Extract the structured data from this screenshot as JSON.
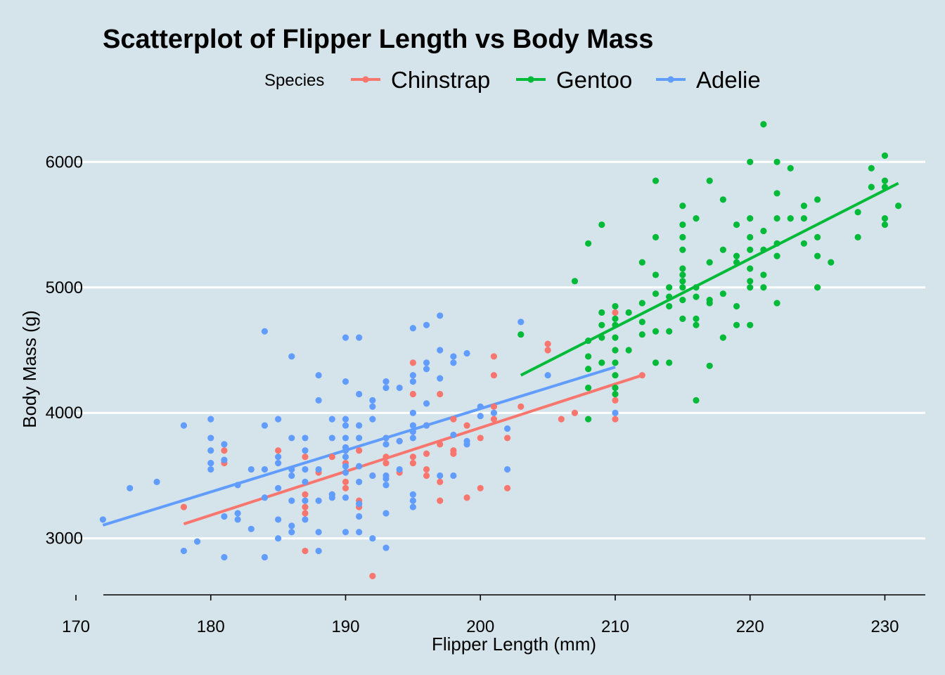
{
  "chart_data": {
    "type": "scatter",
    "title": "Scatterplot of Flipper Length vs Body Mass",
    "xlabel": "Flipper Length (mm)",
    "ylabel": "Body Mass (g)",
    "xlim": [
      170,
      233
    ],
    "ylim": [
      2550,
      6450
    ],
    "x_ticks": [
      170,
      180,
      190,
      200,
      210,
      220,
      230
    ],
    "y_ticks": [
      3000,
      4000,
      5000,
      6000
    ],
    "x_tick_labels": [
      "170",
      "180",
      "190",
      "200",
      "210",
      "220",
      "230"
    ],
    "y_tick_labels": [
      "3000",
      "4000",
      "5000",
      "6000"
    ],
    "grid": "horizontal major only",
    "legend": {
      "title": "Species",
      "placement": "top"
    },
    "series": [
      {
        "name": "Chinstrap",
        "color": "#f8766d",
        "fit": {
          "x": [
            178,
            212
          ],
          "y": [
            3115,
            4300
          ]
        },
        "points": [
          [
            178,
            3250
          ],
          [
            181,
            3700
          ],
          [
            181,
            3600
          ],
          [
            185,
            3700
          ],
          [
            187,
            3650
          ],
          [
            187,
            3350
          ],
          [
            187,
            3250
          ],
          [
            187,
            3200
          ],
          [
            187,
            2900
          ],
          [
            188,
            3525
          ],
          [
            189,
            3650
          ],
          [
            189,
            3350
          ],
          [
            190,
            3600
          ],
          [
            190,
            3450
          ],
          [
            190,
            3400
          ],
          [
            191,
            3300
          ],
          [
            191,
            3250
          ],
          [
            191,
            3700
          ],
          [
            192,
            2700
          ],
          [
            192,
            3500
          ],
          [
            193,
            3800
          ],
          [
            193,
            3650
          ],
          [
            193,
            3600
          ],
          [
            194,
            3775
          ],
          [
            194,
            3525
          ],
          [
            195,
            4400
          ],
          [
            195,
            4150
          ],
          [
            195,
            3650
          ],
          [
            195,
            3600
          ],
          [
            196,
            3900
          ],
          [
            196,
            3500
          ],
          [
            196,
            3550
          ],
          [
            196,
            3675
          ],
          [
            197,
            4150
          ],
          [
            197,
            3750
          ],
          [
            197,
            3450
          ],
          [
            197,
            3300
          ],
          [
            198,
            3950
          ],
          [
            198,
            3700
          ],
          [
            198,
            3675
          ],
          [
            199,
            3900
          ],
          [
            199,
            3325
          ],
          [
            200,
            3800
          ],
          [
            200,
            3400
          ],
          [
            201,
            4050
          ],
          [
            201,
            3950
          ],
          [
            202,
            3800
          ],
          [
            202,
            3400
          ],
          [
            203,
            4050
          ],
          [
            205,
            4550
          ],
          [
            205,
            4500
          ],
          [
            206,
            3950
          ],
          [
            207,
            4000
          ],
          [
            210,
            4800
          ],
          [
            210,
            4100
          ],
          [
            210,
            3950
          ],
          [
            212,
            4300
          ],
          [
            201,
            4450
          ],
          [
            201,
            4300
          ]
        ]
      },
      {
        "name": "Gentoo",
        "color": "#00ba38",
        "fit": {
          "x": [
            203,
            231
          ],
          "y": [
            4300,
            5830
          ]
        },
        "points": [
          [
            203,
            4625
          ],
          [
            207,
            5050
          ],
          [
            208,
            5350
          ],
          [
            208,
            4575
          ],
          [
            208,
            4450
          ],
          [
            208,
            4350
          ],
          [
            208,
            4200
          ],
          [
            208,
            3950
          ],
          [
            209,
            5500
          ],
          [
            209,
            4800
          ],
          [
            209,
            4700
          ],
          [
            209,
            4600
          ],
          [
            209,
            4400
          ],
          [
            210,
            4850
          ],
          [
            210,
            4750
          ],
          [
            210,
            4700
          ],
          [
            210,
            4600
          ],
          [
            210,
            4500
          ],
          [
            210,
            4400
          ],
          [
            210,
            4300
          ],
          [
            210,
            4200
          ],
          [
            210,
            4150
          ],
          [
            211,
            4800
          ],
          [
            211,
            4500
          ],
          [
            212,
            5200
          ],
          [
            212,
            4875
          ],
          [
            212,
            4725
          ],
          [
            212,
            4625
          ],
          [
            213,
            5850
          ],
          [
            213,
            5400
          ],
          [
            213,
            5100
          ],
          [
            213,
            4950
          ],
          [
            213,
            4650
          ],
          [
            213,
            4400
          ],
          [
            214,
            5000
          ],
          [
            214,
            4925
          ],
          [
            214,
            4850
          ],
          [
            214,
            4650
          ],
          [
            214,
            4400
          ],
          [
            215,
            5650
          ],
          [
            215,
            5500
          ],
          [
            215,
            5400
          ],
          [
            215,
            5300
          ],
          [
            215,
            5150
          ],
          [
            215,
            5100
          ],
          [
            215,
            5050
          ],
          [
            215,
            5000
          ],
          [
            215,
            4900
          ],
          [
            215,
            4750
          ],
          [
            216,
            5550
          ],
          [
            216,
            5000
          ],
          [
            216,
            4925
          ],
          [
            216,
            4750
          ],
          [
            216,
            4700
          ],
          [
            216,
            4100
          ],
          [
            217,
            5850
          ],
          [
            217,
            5200
          ],
          [
            217,
            4900
          ],
          [
            217,
            4875
          ],
          [
            217,
            4375
          ],
          [
            218,
            5700
          ],
          [
            218,
            5300
          ],
          [
            218,
            4950
          ],
          [
            218,
            4600
          ],
          [
            219,
            5500
          ],
          [
            219,
            5250
          ],
          [
            219,
            5200
          ],
          [
            219,
            4850
          ],
          [
            219,
            4700
          ],
          [
            220,
            6000
          ],
          [
            220,
            5550
          ],
          [
            220,
            5400
          ],
          [
            220,
            5300
          ],
          [
            220,
            5150
          ],
          [
            220,
            5050
          ],
          [
            220,
            5000
          ],
          [
            220,
            4700
          ],
          [
            221,
            6300
          ],
          [
            221,
            5450
          ],
          [
            221,
            5300
          ],
          [
            221,
            5100
          ],
          [
            221,
            5000
          ],
          [
            222,
            6000
          ],
          [
            222,
            5750
          ],
          [
            222,
            5550
          ],
          [
            222,
            5350
          ],
          [
            222,
            5250
          ],
          [
            222,
            4875
          ],
          [
            223,
            5950
          ],
          [
            223,
            5550
          ],
          [
            224,
            5650
          ],
          [
            224,
            5550
          ],
          [
            224,
            5350
          ],
          [
            225,
            5700
          ],
          [
            225,
            5400
          ],
          [
            225,
            5250
          ],
          [
            225,
            5000
          ],
          [
            226,
            5200
          ],
          [
            228,
            5600
          ],
          [
            228,
            5400
          ],
          [
            229,
            5950
          ],
          [
            229,
            5800
          ],
          [
            230,
            6050
          ],
          [
            230,
            5850
          ],
          [
            230,
            5800
          ],
          [
            230,
            5550
          ],
          [
            230,
            5500
          ],
          [
            231,
            5650
          ]
        ]
      },
      {
        "name": "Adelie",
        "color": "#619cff",
        "fit": {
          "x": [
            172,
            210
          ],
          "y": [
            3105,
            4365
          ]
        },
        "points": [
          [
            172,
            3150
          ],
          [
            174,
            3400
          ],
          [
            176,
            3450
          ],
          [
            178,
            3900
          ],
          [
            178,
            2900
          ],
          [
            179,
            2975
          ],
          [
            180,
            3950
          ],
          [
            180,
            3800
          ],
          [
            180,
            3700
          ],
          [
            180,
            3600
          ],
          [
            180,
            3550
          ],
          [
            181,
            3750
          ],
          [
            181,
            3625
          ],
          [
            181,
            3175
          ],
          [
            181,
            2850
          ],
          [
            182,
            3425
          ],
          [
            182,
            3200
          ],
          [
            182,
            3150
          ],
          [
            183,
            3550
          ],
          [
            183,
            3075
          ],
          [
            184,
            4650
          ],
          [
            184,
            3900
          ],
          [
            184,
            3550
          ],
          [
            184,
            3325
          ],
          [
            184,
            2850
          ],
          [
            185,
            3950
          ],
          [
            185,
            3650
          ],
          [
            185,
            3600
          ],
          [
            185,
            3400
          ],
          [
            185,
            3150
          ],
          [
            185,
            3000
          ],
          [
            186,
            4450
          ],
          [
            186,
            3800
          ],
          [
            186,
            3550
          ],
          [
            186,
            3500
          ],
          [
            186,
            3300
          ],
          [
            186,
            3100
          ],
          [
            186,
            3050
          ],
          [
            187,
            3800
          ],
          [
            187,
            3700
          ],
          [
            187,
            3550
          ],
          [
            187,
            3450
          ],
          [
            187,
            3300
          ],
          [
            187,
            3150
          ],
          [
            188,
            4300
          ],
          [
            188,
            4100
          ],
          [
            188,
            3550
          ],
          [
            188,
            3300
          ],
          [
            188,
            3050
          ],
          [
            188,
            2900
          ],
          [
            189,
            3950
          ],
          [
            189,
            3800
          ],
          [
            189,
            3350
          ],
          [
            189,
            3325
          ],
          [
            190,
            4600
          ],
          [
            190,
            4250
          ],
          [
            190,
            3950
          ],
          [
            190,
            3900
          ],
          [
            190,
            3800
          ],
          [
            190,
            3725
          ],
          [
            190,
            3700
          ],
          [
            190,
            3650
          ],
          [
            190,
            3575
          ],
          [
            190,
            3525
          ],
          [
            190,
            3325
          ],
          [
            190,
            3050
          ],
          [
            191,
            4600
          ],
          [
            191,
            4150
          ],
          [
            191,
            3900
          ],
          [
            191,
            3800
          ],
          [
            191,
            3575
          ],
          [
            191,
            3450
          ],
          [
            191,
            3275
          ],
          [
            191,
            3175
          ],
          [
            191,
            3050
          ],
          [
            192,
            4100
          ],
          [
            192,
            4050
          ],
          [
            192,
            3950
          ],
          [
            192,
            3500
          ],
          [
            192,
            3000
          ],
          [
            193,
            4250
          ],
          [
            193,
            4200
          ],
          [
            193,
            3800
          ],
          [
            193,
            3750
          ],
          [
            193,
            3500
          ],
          [
            193,
            3475
          ],
          [
            193,
            3425
          ],
          [
            193,
            3200
          ],
          [
            193,
            2925
          ],
          [
            194,
            4200
          ],
          [
            194,
            3775
          ],
          [
            194,
            3550
          ],
          [
            195,
            4675
          ],
          [
            195,
            4300
          ],
          [
            195,
            4250
          ],
          [
            195,
            4000
          ],
          [
            195,
            3900
          ],
          [
            195,
            3850
          ],
          [
            195,
            3800
          ],
          [
            195,
            3350
          ],
          [
            195,
            3300
          ],
          [
            195,
            3250
          ],
          [
            196,
            4700
          ],
          [
            196,
            4400
          ],
          [
            196,
            4350
          ],
          [
            196,
            4075
          ],
          [
            196,
            3900
          ],
          [
            197,
            4775
          ],
          [
            197,
            4500
          ],
          [
            197,
            4275
          ],
          [
            197,
            3500
          ],
          [
            198,
            4450
          ],
          [
            198,
            4400
          ],
          [
            198,
            3825
          ],
          [
            198,
            3500
          ],
          [
            199,
            4475
          ],
          [
            199,
            3775
          ],
          [
            199,
            3750
          ],
          [
            200,
            4050
          ],
          [
            200,
            3975
          ],
          [
            201,
            4000
          ],
          [
            202,
            3875
          ],
          [
            202,
            3550
          ],
          [
            203,
            4725
          ],
          [
            205,
            4300
          ],
          [
            210,
            4000
          ]
        ]
      }
    ]
  }
}
